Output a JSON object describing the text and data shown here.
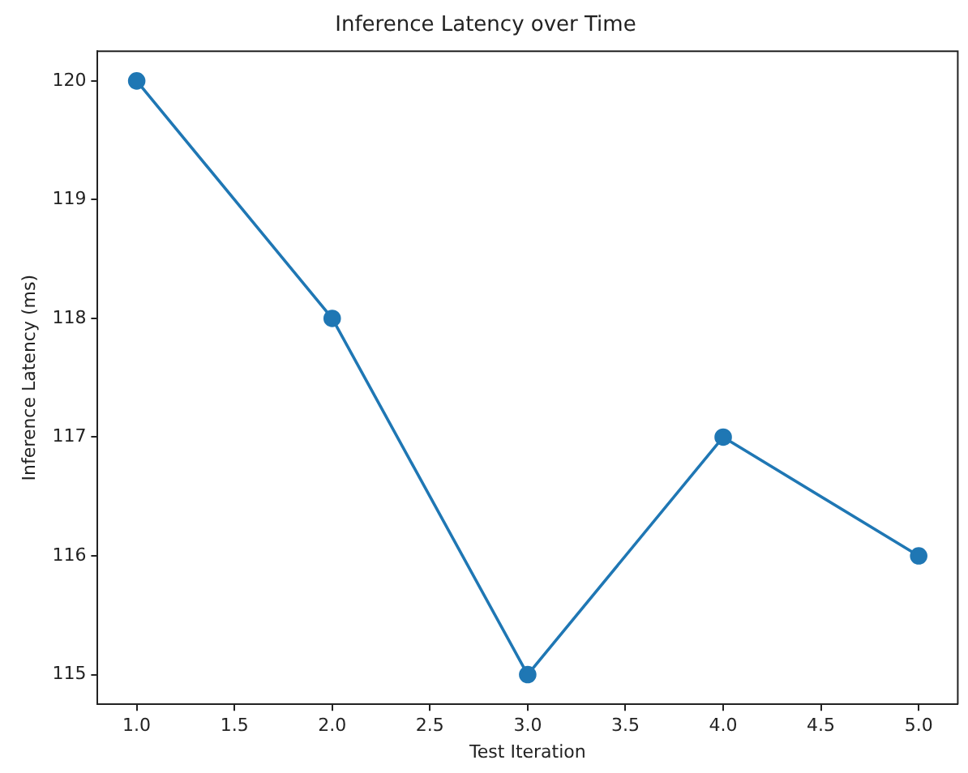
{
  "chart_data": {
    "type": "line",
    "title": "Inference Latency over Time",
    "xlabel": "Test Iteration",
    "ylabel": "Inference Latency (ms)",
    "x": [
      1,
      2,
      3,
      4,
      5
    ],
    "series": [
      {
        "color": "#1f77b4",
        "values": [
          120,
          118,
          115,
          117,
          116
        ]
      }
    ],
    "xlim": [
      0.8,
      5.2
    ],
    "ylim": [
      114.75,
      120.25
    ],
    "xticks": [
      {
        "value": 1,
        "label": "1.0"
      },
      {
        "value": 1.5,
        "label": "1.5"
      },
      {
        "value": 2,
        "label": "2.0"
      },
      {
        "value": 2.5,
        "label": "2.5"
      },
      {
        "value": 3,
        "label": "3.0"
      },
      {
        "value": 3.5,
        "label": "3.5"
      },
      {
        "value": 4,
        "label": "4.0"
      },
      {
        "value": 4.5,
        "label": "4.5"
      },
      {
        "value": 5,
        "label": "5.0"
      }
    ],
    "yticks": [
      115,
      116,
      117,
      118,
      119,
      120
    ],
    "grid": false,
    "legend": false,
    "marker": "circle",
    "line_style": "solid"
  }
}
